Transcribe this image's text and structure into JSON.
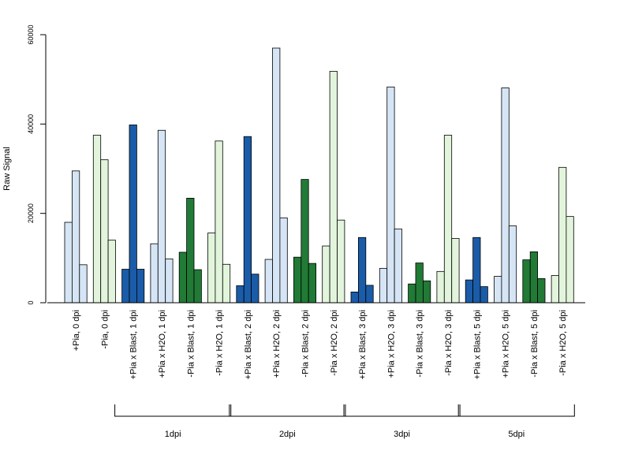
{
  "chart_data": {
    "type": "bar",
    "ylabel": "Raw Signal",
    "ylim": [
      0,
      60000
    ],
    "yticks": [
      0,
      20000,
      40000,
      60000
    ],
    "grid": false,
    "legend": "none",
    "bars_per_category": 3,
    "categories": [
      {
        "label": "+Pia, 0 dpi",
        "color": "#d6e5f5",
        "values": [
          18000,
          29500,
          8500
        ]
      },
      {
        "label": "-Pia, 0 dpi",
        "color": "#e2f5dc",
        "values": [
          37500,
          32000,
          14000
        ]
      },
      {
        "label": "+Pia x Blast, 1 dpi",
        "color": "#1a5ca8",
        "values": [
          7500,
          39800,
          7500
        ]
      },
      {
        "label": "+Pia x H2O, 1 dpi",
        "color": "#d6e5f5",
        "values": [
          13200,
          38600,
          9800
        ]
      },
      {
        "label": "-Pia x Blast, 1 dpi",
        "color": "#217a35",
        "values": [
          11300,
          23400,
          7400
        ]
      },
      {
        "label": "-Pia x H2O, 1 dpi",
        "color": "#e2f5dc",
        "values": [
          15600,
          36200,
          8600
        ]
      },
      {
        "label": "+Pia x Blast, 2 dpi",
        "color": "#1a5ca8",
        "values": [
          3800,
          37200,
          6400
        ]
      },
      {
        "label": "+Pia x H2O, 2 dpi",
        "color": "#d6e5f5",
        "values": [
          9700,
          57000,
          19000
        ]
      },
      {
        "label": "-Pia x Blast, 2 dpi",
        "color": "#217a35",
        "values": [
          10200,
          27600,
          8800
        ]
      },
      {
        "label": "-Pia x H2O, 2 dpi",
        "color": "#e2f5dc",
        "values": [
          12700,
          51800,
          18500
        ]
      },
      {
        "label": "+Pia x Blast, 3 dpi",
        "color": "#1a5ca8",
        "values": [
          2400,
          14600,
          3900
        ]
      },
      {
        "label": "+Pia x H2O, 3 dpi",
        "color": "#d6e5f5",
        "values": [
          7700,
          48300,
          16500
        ]
      },
      {
        "label": "-Pia x Blast, 3 dpi",
        "color": "#217a35",
        "values": [
          4200,
          8900,
          4900
        ]
      },
      {
        "label": "-Pia x H2O, 3 dpi",
        "color": "#e2f5dc",
        "values": [
          7000,
          37500,
          14400
        ]
      },
      {
        "label": "+Pia x Blast, 5 dpi",
        "color": "#1a5ca8",
        "values": [
          5100,
          14600,
          3600
        ]
      },
      {
        "label": "+Pia x H2O, 5 dpi",
        "color": "#d6e5f5",
        "values": [
          5900,
          48100,
          17200
        ]
      },
      {
        "label": "-Pia x Blast, 5 dpi",
        "color": "#217a35",
        "values": [
          9600,
          11400,
          5400
        ]
      },
      {
        "label": "-Pia x H2O, 5 dpi",
        "color": "#e2f5dc",
        "values": [
          6100,
          30300,
          19300
        ]
      }
    ],
    "groups": [
      {
        "label": "1dpi",
        "categories": [
          2,
          5
        ]
      },
      {
        "label": "2dpi",
        "categories": [
          6,
          9
        ]
      },
      {
        "label": "3dpi",
        "categories": [
          10,
          13
        ]
      },
      {
        "label": "5dpi",
        "categories": [
          14,
          17
        ]
      }
    ]
  }
}
